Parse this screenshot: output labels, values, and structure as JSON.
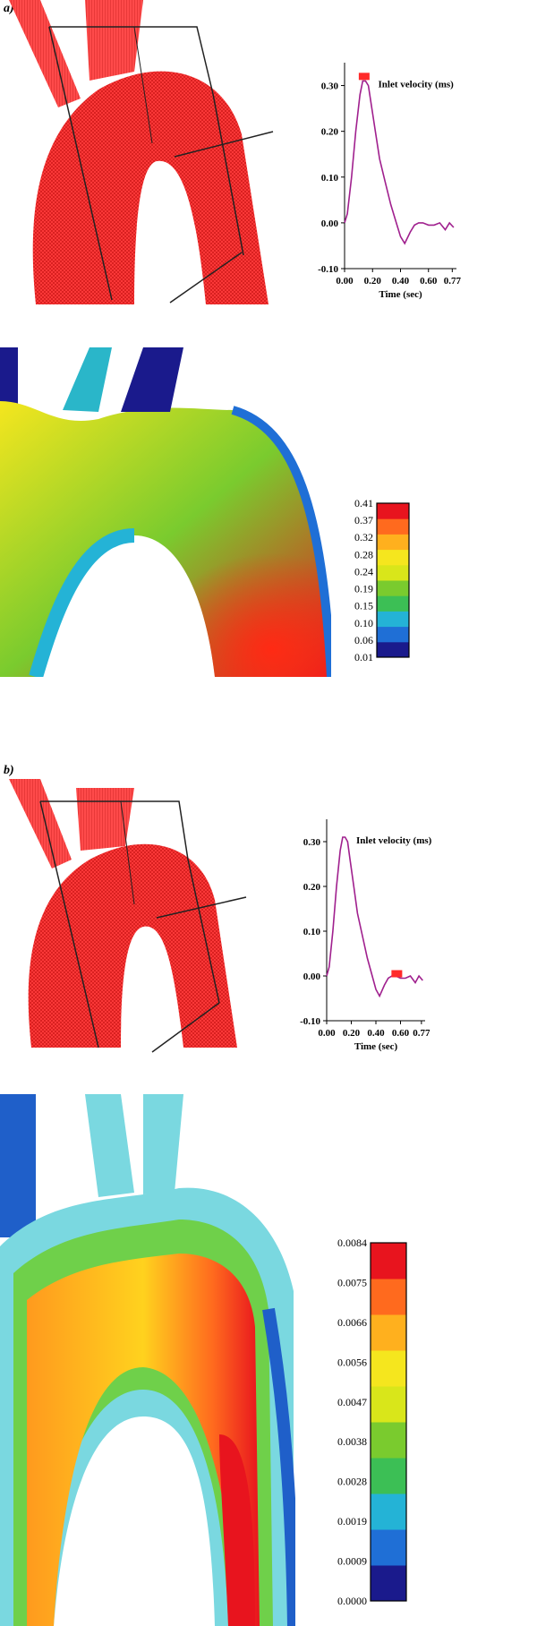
{
  "panels": [
    {
      "label": "a)",
      "chart_data": {
        "type": "line",
        "series": [
          {
            "name": "",
            "x": [
              0.0,
              0.02,
              0.05,
              0.08,
              0.11,
              0.13,
              0.15,
              0.17,
              0.19,
              0.22,
              0.25,
              0.29,
              0.33,
              0.37,
              0.4,
              0.43,
              0.47,
              0.5,
              0.53,
              0.56,
              0.6,
              0.64,
              0.68,
              0.72,
              0.75,
              0.78
            ],
            "y": [
              0.0,
              0.02,
              0.1,
              0.2,
              0.28,
              0.31,
              0.31,
              0.3,
              0.26,
              0.2,
              0.14,
              0.09,
              0.04,
              0.0,
              -0.03,
              -0.045,
              -0.02,
              -0.005,
              0.0,
              0.0,
              -0.005,
              -0.005,
              0.0,
              -0.015,
              0.0,
              -0.01
            ]
          }
        ],
        "annotation": "Inlet velocity (ms)",
        "xlabel": "Time (sec)",
        "ylabel": "",
        "xlim": [
          0.0,
          0.8
        ],
        "ylim": [
          -0.1,
          0.35
        ],
        "xticks": [
          "0.00",
          "0.20",
          "0.40",
          "0.60",
          "0.77"
        ],
        "xtick_values": [
          0.0,
          0.2,
          0.4,
          0.6,
          0.77
        ],
        "yticks": [
          "-0.10",
          "0.00",
          "0.10",
          "0.20",
          "0.30"
        ],
        "ytick_values": [
          -0.1,
          0.0,
          0.1,
          0.2,
          0.3
        ],
        "marker_x": 0.14,
        "marker_y": 0.32,
        "line_color": "#a0208e",
        "marker_color": "#ff2a2a"
      },
      "colorbar": {
        "ticks": [
          "0.41",
          "0.37",
          "0.32",
          "0.28",
          "0.24",
          "0.19",
          "0.15",
          "0.10",
          "0.06",
          "0.01"
        ],
        "colors": [
          "#1a1a8c",
          "#1f6fd6",
          "#24b3d6",
          "#3cbf55",
          "#7acb2e",
          "#d9e61a",
          "#f5e61e",
          "#ffb01e",
          "#ff6a1e",
          "#e8141e"
        ]
      }
    },
    {
      "label": "b)",
      "chart_data": {
        "type": "line",
        "series": [
          {
            "name": "",
            "x": [
              0.0,
              0.02,
              0.05,
              0.08,
              0.11,
              0.13,
              0.15,
              0.17,
              0.19,
              0.22,
              0.25,
              0.29,
              0.33,
              0.37,
              0.4,
              0.43,
              0.47,
              0.5,
              0.53,
              0.56,
              0.6,
              0.64,
              0.68,
              0.72,
              0.75,
              0.78
            ],
            "y": [
              0.0,
              0.02,
              0.1,
              0.2,
              0.28,
              0.31,
              0.31,
              0.3,
              0.26,
              0.2,
              0.14,
              0.09,
              0.04,
              0.0,
              -0.03,
              -0.045,
              -0.02,
              -0.005,
              0.0,
              0.0,
              -0.005,
              -0.005,
              0.0,
              -0.015,
              0.0,
              -0.01
            ]
          }
        ],
        "annotation": "Inlet velocity (ms)",
        "xlabel": "Time (sec)",
        "ylabel": "",
        "xlim": [
          0.0,
          0.8
        ],
        "ylim": [
          -0.1,
          0.35
        ],
        "xticks": [
          "0.00",
          "0.20",
          "0.40",
          "0.60",
          "0.77"
        ],
        "xtick_values": [
          0.0,
          0.2,
          0.4,
          0.6,
          0.77
        ],
        "yticks": [
          "-0.10",
          "0.00",
          "0.10",
          "0.20",
          "0.30"
        ],
        "ytick_values": [
          -0.1,
          0.0,
          0.1,
          0.2,
          0.3
        ],
        "marker_x": 0.57,
        "marker_y": 0.005,
        "line_color": "#a0208e",
        "marker_color": "#ff2a2a"
      },
      "colorbar": {
        "ticks": [
          "0.0084",
          "0.0075",
          "0.0066",
          "0.0056",
          "0.0047",
          "0.0038",
          "0.0028",
          "0.0019",
          "0.0009",
          "0.0000"
        ],
        "colors": [
          "#1a1a8c",
          "#1f6fd6",
          "#24b3d6",
          "#3cbf55",
          "#7acb2e",
          "#d9e61a",
          "#f5e61e",
          "#ffb01e",
          "#ff6a1e",
          "#e8141e"
        ]
      }
    }
  ]
}
